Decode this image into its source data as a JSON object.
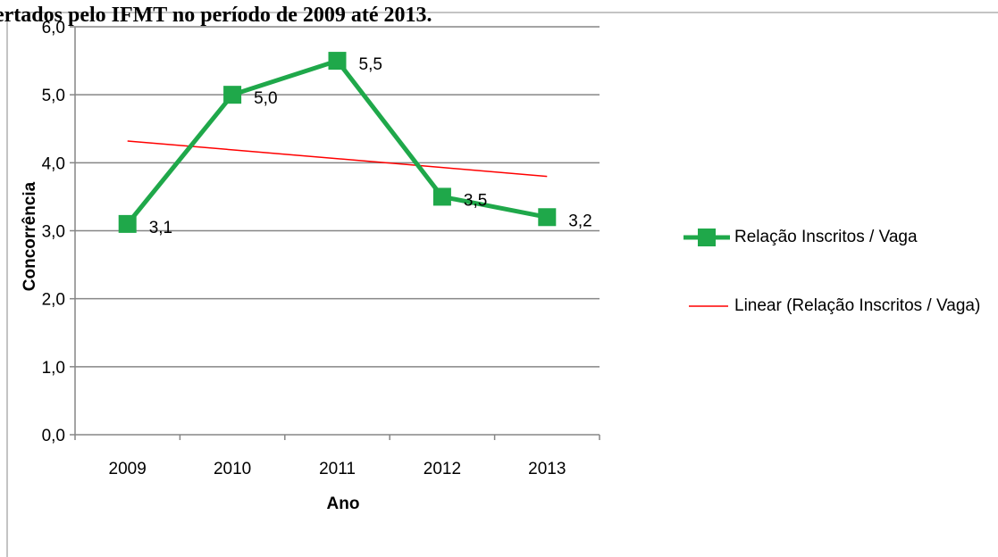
{
  "chart_data": {
    "type": "line",
    "title": "ertados pelo IFMT no período de 2009 até 2013.",
    "x_label": "Ano",
    "y_label": "Concorrência",
    "categories": [
      "2009",
      "2010",
      "2011",
      "2012",
      "2013"
    ],
    "series": [
      {
        "name": "Relação Inscritos / Vaga",
        "color": "#1fa84a",
        "values": [
          3.1,
          5.0,
          5.5,
          3.5,
          3.2
        ],
        "value_labels": [
          "3,1",
          "5,0",
          "5,5",
          "3,5",
          "3,2"
        ],
        "marker": "square"
      },
      {
        "name": "Linear (Relação Inscritos / Vaga)",
        "color": "#ff0000",
        "values": [
          4.32,
          4.19,
          4.06,
          3.93,
          3.8
        ]
      }
    ],
    "ylim": [
      0,
      6
    ],
    "yticks": [
      {
        "value": 0,
        "label": "0,0"
      },
      {
        "value": 1,
        "label": "1,0"
      },
      {
        "value": 2,
        "label": "2,0"
      },
      {
        "value": 3,
        "label": "3,0"
      },
      {
        "value": 4,
        "label": "4,0"
      },
      {
        "value": 5,
        "label": "5,0"
      },
      {
        "value": 6,
        "label": "6,0"
      }
    ],
    "grid": true,
    "legend": "right"
  }
}
